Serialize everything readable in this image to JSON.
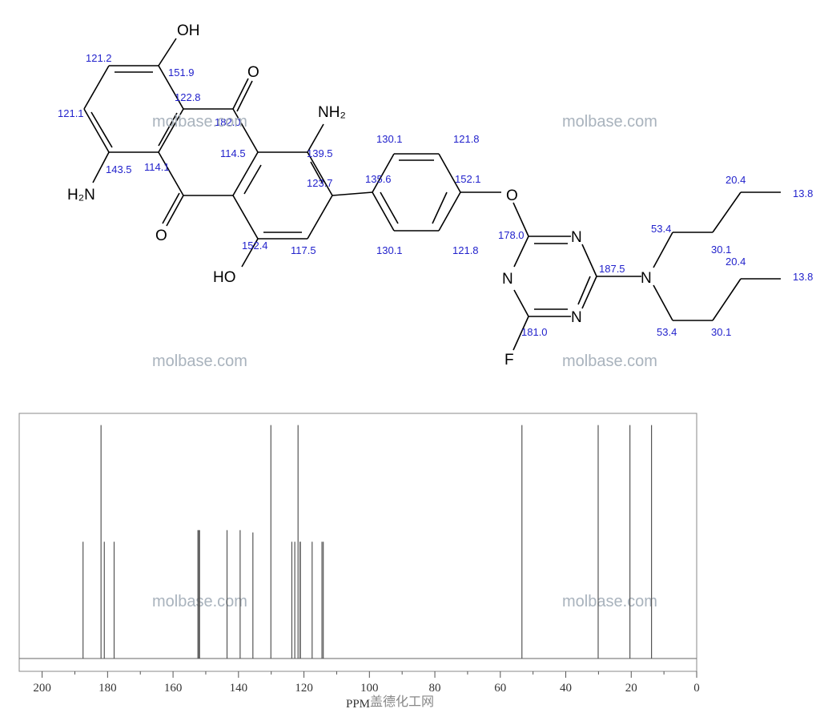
{
  "structure": {
    "atom_labels": [
      "OH",
      "O",
      "NH₂",
      "H₂N",
      "O",
      "HO",
      "O",
      "N",
      "N",
      "N",
      "N",
      "F"
    ],
    "shift_labels": [
      "121.2",
      "151.9",
      "122.8",
      "121.1",
      "182.0",
      "114.5",
      "139.5",
      "143.5",
      "114.1",
      "123.7",
      "130.1",
      "121.8",
      "135.6",
      "152.1",
      "152.4",
      "117.5",
      "130.1",
      "121.8",
      "178.0",
      "187.5",
      "181.0",
      "53.4",
      "53.4",
      "30.1",
      "30.1",
      "20.4",
      "20.4",
      "13.8",
      "13.8"
    ],
    "watermarks": [
      "molbase.com",
      "molbase.com",
      "molbase.com",
      "molbase.com",
      "molbase.com",
      "molbase.com"
    ]
  },
  "chart_data": {
    "type": "stem",
    "color": "#555555",
    "x": [
      187.5,
      182.0,
      181.0,
      178.0,
      152.4,
      152.1,
      151.9,
      143.5,
      139.5,
      135.6,
      130.1,
      123.7,
      122.8,
      121.8,
      121.2,
      121.1,
      117.5,
      114.5,
      114.1,
      53.4,
      30.1,
      20.4,
      13.8
    ],
    "values": [
      0.5,
      1.0,
      0.5,
      0.5,
      0.55,
      0.55,
      0.55,
      0.55,
      0.55,
      0.54,
      1.0,
      0.5,
      0.5,
      1.0,
      0.5,
      0.5,
      0.5,
      0.5,
      0.5,
      1.0,
      1.0,
      1.0,
      1.0
    ],
    "xlim": [
      207,
      0
    ],
    "ylim": [
      0,
      1.05
    ],
    "xticks": [
      200,
      180,
      160,
      140,
      120,
      100,
      80,
      60,
      40,
      20,
      0
    ],
    "xminorticks": [
      190,
      170,
      150,
      130,
      110,
      90,
      70,
      50,
      30,
      10
    ],
    "xlabel": "PPM",
    "source": "盖德化工网"
  }
}
